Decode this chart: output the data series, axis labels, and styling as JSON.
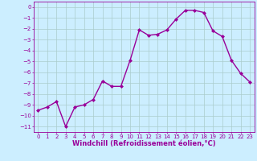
{
  "x": [
    0,
    1,
    2,
    3,
    4,
    5,
    6,
    7,
    8,
    9,
    10,
    11,
    12,
    13,
    14,
    15,
    16,
    17,
    18,
    19,
    20,
    21,
    22,
    23
  ],
  "y": [
    -9.5,
    -9.2,
    -8.7,
    -11.0,
    -9.2,
    -9.0,
    -8.5,
    -6.8,
    -7.3,
    -7.3,
    -4.9,
    -2.1,
    -2.6,
    -2.5,
    -2.1,
    -1.1,
    -0.3,
    -0.3,
    -0.5,
    -2.2,
    -2.7,
    -4.9,
    -6.1,
    -6.9
  ],
  "line_color": "#990099",
  "marker": "D",
  "marker_size": 2,
  "linewidth": 1.0,
  "xlabel": "Windchill (Refroidissement éolien,°C)",
  "xlabel_fontsize": 6,
  "xlim": [
    -0.5,
    23.5
  ],
  "ylim": [
    -11.5,
    0.5
  ],
  "yticks": [
    0,
    -1,
    -2,
    -3,
    -4,
    -5,
    -6,
    -7,
    -8,
    -9,
    -10,
    -11
  ],
  "xticks": [
    0,
    1,
    2,
    3,
    4,
    5,
    6,
    7,
    8,
    9,
    10,
    11,
    12,
    13,
    14,
    15,
    16,
    17,
    18,
    19,
    20,
    21,
    22,
    23
  ],
  "background_color": "#cceeff",
  "grid_color": "#aacccc",
  "tick_fontsize": 5,
  "title": ""
}
